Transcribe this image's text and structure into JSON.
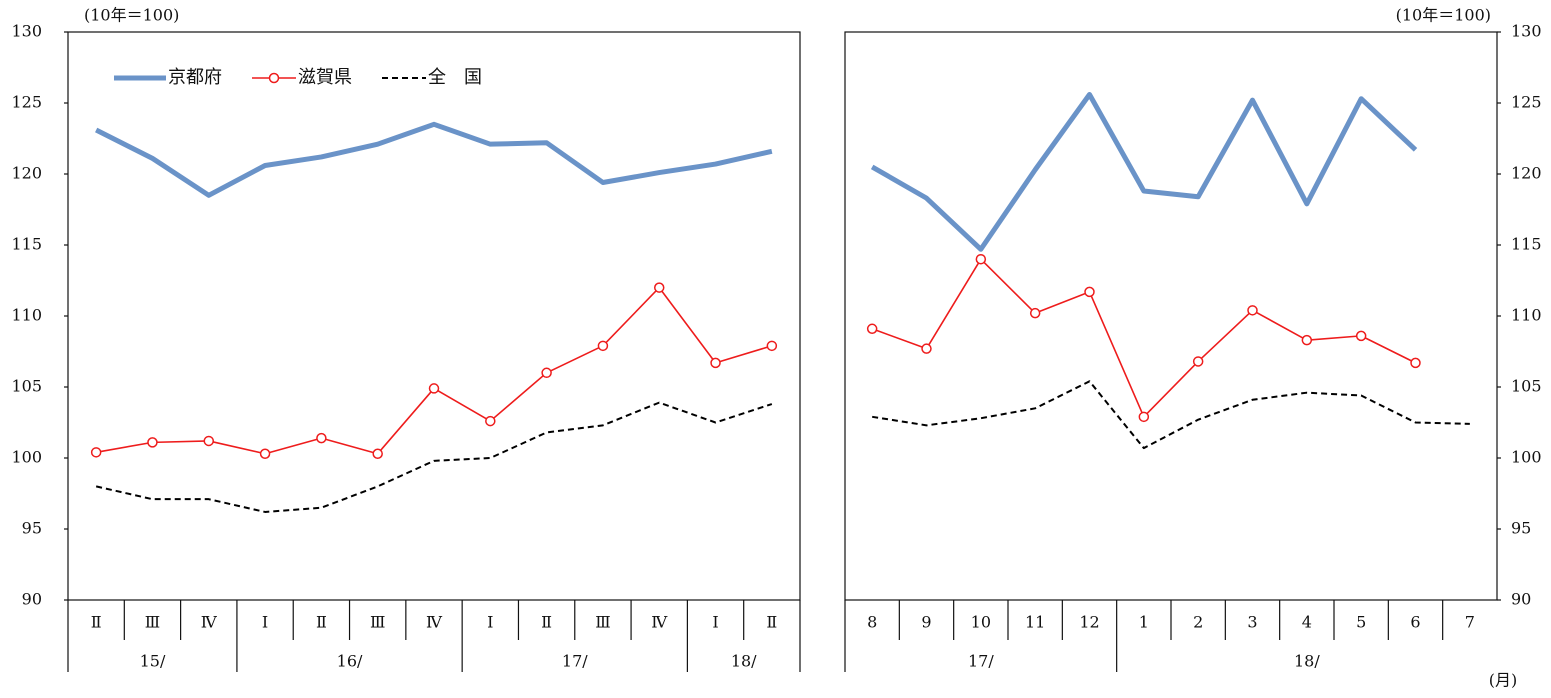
{
  "chart_data": [
    {
      "type": "line",
      "y_unit": "(10年＝100)",
      "categories": [
        "Ⅱ",
        "Ⅲ",
        "Ⅳ",
        "Ⅰ",
        "Ⅱ",
        "Ⅲ",
        "Ⅳ",
        "Ⅰ",
        "Ⅱ",
        "Ⅲ",
        "Ⅳ",
        "Ⅰ",
        "Ⅱ"
      ],
      "x_groups": [
        "15/",
        null,
        null,
        "16/",
        null,
        null,
        null,
        "17/",
        null,
        null,
        null,
        "18/",
        null
      ],
      "ylim": [
        90,
        130
      ],
      "yticks": [
        90,
        95,
        100,
        105,
        110,
        115,
        120,
        125,
        130
      ],
      "y_axis_side": "left",
      "legend": "top-left",
      "series": [
        {
          "name": "京都府",
          "color": "#6a93c8",
          "style": "thick",
          "values": [
            123.1,
            121.1,
            118.5,
            120.6,
            121.2,
            122.1,
            123.5,
            122.1,
            122.2,
            119.4,
            120.1,
            120.7,
            121.6
          ]
        },
        {
          "name": "滋賀県",
          "color": "#ee1c1c",
          "style": "marker",
          "values": [
            100.4,
            101.1,
            101.2,
            100.3,
            101.4,
            100.3,
            104.9,
            102.6,
            106.0,
            107.9,
            112.0,
            106.7,
            107.9
          ]
        },
        {
          "name": "全　国",
          "color": "#000000",
          "style": "dashed",
          "values": [
            98.0,
            97.1,
            97.1,
            96.2,
            96.5,
            98.0,
            99.8,
            100.0,
            101.8,
            102.3,
            103.9,
            102.5,
            103.8
          ]
        }
      ]
    },
    {
      "type": "line",
      "y_unit": "(10年＝100)",
      "x_unit": "(月)",
      "categories": [
        "8",
        "9",
        "10",
        "11",
        "12",
        "1",
        "2",
        "3",
        "4",
        "5",
        "6",
        "7"
      ],
      "x_groups": [
        "17/",
        null,
        null,
        null,
        null,
        "18/",
        null,
        null,
        null,
        null,
        null,
        null
      ],
      "ylim": [
        90,
        130
      ],
      "yticks": [
        90,
        95,
        100,
        105,
        110,
        115,
        120,
        125,
        130
      ],
      "y_axis_side": "right",
      "series": [
        {
          "color": "#6a93c8",
          "style": "thick",
          "values": [
            120.5,
            118.3,
            114.7,
            120.3,
            125.6,
            118.8,
            118.4,
            125.2,
            117.9,
            125.3,
            121.7,
            null
          ]
        },
        {
          "color": "#ee1c1c",
          "style": "marker",
          "values": [
            109.1,
            107.7,
            114.0,
            110.2,
            111.7,
            102.9,
            106.8,
            110.4,
            108.3,
            108.6,
            106.7,
            null
          ]
        },
        {
          "color": "#000000",
          "style": "dashed",
          "values": [
            102.9,
            102.3,
            102.8,
            103.5,
            105.4,
            100.7,
            102.7,
            104.1,
            104.6,
            104.4,
            102.5,
            102.4
          ]
        }
      ]
    }
  ]
}
